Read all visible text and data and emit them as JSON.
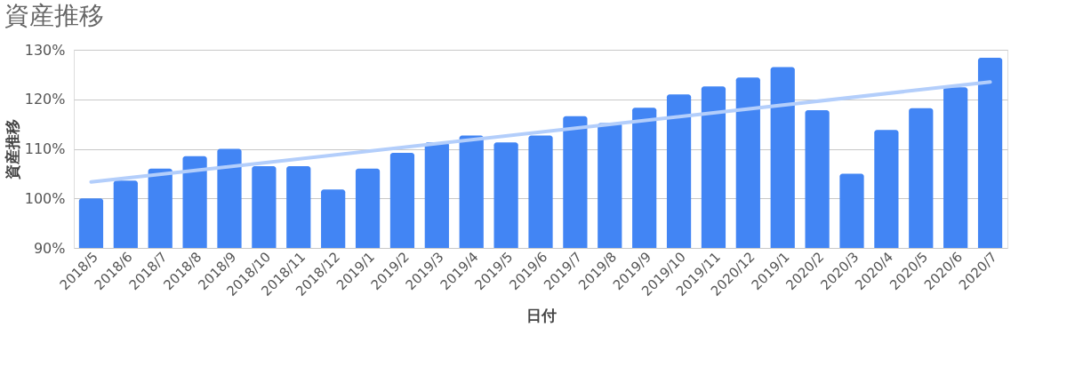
{
  "chart_data": {
    "type": "bar",
    "title": "資産推移",
    "xlabel": "日付",
    "ylabel": "資産推移",
    "categories": [
      "2018/5",
      "2018/6",
      "2018/7",
      "2018/8",
      "2018/9",
      "2018/10",
      "2018/11",
      "2018/12",
      "2019/1",
      "2019/2",
      "2019/3",
      "2019/4",
      "2019/5",
      "2019/6",
      "2019/7",
      "2019/8",
      "2019/9",
      "2019/10",
      "2019/11",
      "2020/12",
      "2019/1",
      "2020/2",
      "2020/3",
      "2020/4",
      "2020/5",
      "2020/6",
      "2020/7"
    ],
    "series": [
      {
        "type": "bar",
        "color": "#4285f4",
        "values": [
          100,
          103.6,
          106,
          108.5,
          110,
          106.5,
          106.5,
          101.8,
          106,
          109.2,
          111.3,
          112.7,
          111.3,
          112.7,
          116.6,
          115.2,
          118.3,
          121,
          122.6,
          124.4,
          126.5,
          117.8,
          105,
          113.8,
          118.2,
          122.4,
          128.4
        ]
      },
      {
        "type": "line",
        "color": "#b3cefb",
        "x": [
          "2018/5",
          "2020/7"
        ],
        "values": [
          103.3,
          123.5
        ]
      }
    ],
    "ylim": [
      90,
      130
    ],
    "yticks": [
      {
        "value": 90,
        "label": "90%"
      },
      {
        "value": 100,
        "label": "100%"
      },
      {
        "value": 110,
        "label": "110%"
      },
      {
        "value": 120,
        "label": "120%"
      },
      {
        "value": 130,
        "label": "130%"
      }
    ],
    "grid": "y",
    "legend": false
  }
}
